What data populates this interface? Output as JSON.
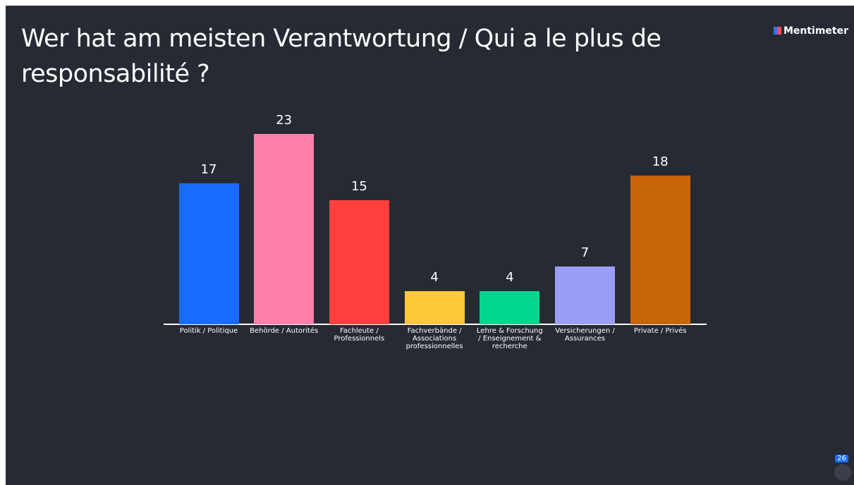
{
  "brand": "Mentimeter",
  "participants": 26,
  "chart_data": {
    "type": "bar",
    "title": "Wer hat am meisten Verantwortung / Qui a le plus de responsabilité ?",
    "categories": [
      "Politik / Politique",
      "Behörde / Autorités",
      "Fachleute / Professionnels",
      "Fachverbände / Associations professionnelles",
      "Lehre & Forschung / Enseignement & recherche",
      "Versicherungen / Assurances",
      "Private / Privés"
    ],
    "values": [
      17,
      23,
      15,
      4,
      4,
      7,
      18
    ],
    "colors": [
      "#1a6cff",
      "#ff80aa",
      "#ff403d",
      "#ffc83a",
      "#00d68f",
      "#9a9ef5",
      "#c8640a"
    ],
    "ylim": [
      0,
      23
    ]
  }
}
